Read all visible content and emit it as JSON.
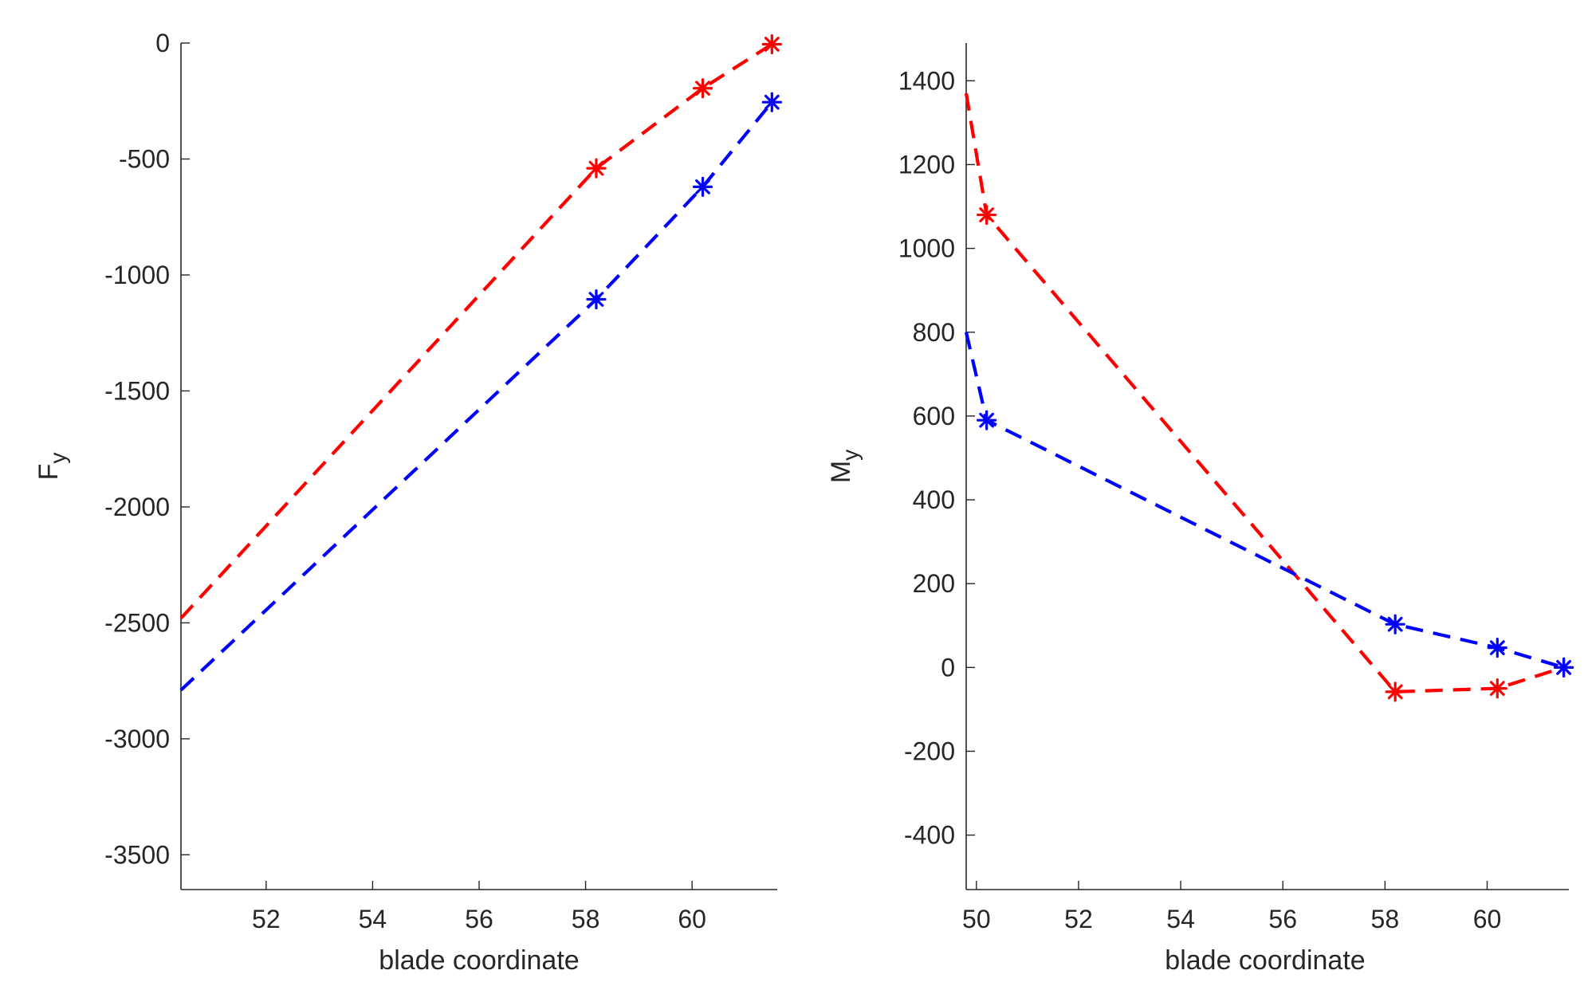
{
  "colors": {
    "series_red": "#ff0000",
    "series_blue": "#0000ff",
    "axis": "#262626"
  },
  "chart_data": [
    {
      "type": "line",
      "xlabel": "blade coordinate",
      "ylabel": {
        "main": "F",
        "sub": "y"
      },
      "xlim": [
        50.4,
        61.6
      ],
      "ylim": [
        -3650,
        0
      ],
      "xticks": [
        "52",
        "54",
        "56",
        "58",
        "60"
      ],
      "yticks": [
        "0",
        "-500",
        "-1000",
        "-1500",
        "-2000",
        "-2500",
        "-3000",
        "-3500"
      ],
      "grid": false,
      "series": [
        {
          "color": "#ff0000",
          "style": "dashed",
          "line": {
            "x": [
              50.4,
              58.2,
              60.2,
              61.5
            ],
            "y": [
              -2480,
              -540,
              -195,
              -5
            ]
          },
          "markers": {
            "x": [
              58.2,
              60.2,
              61.5
            ],
            "y": [
              -540,
              -195,
              -5
            ]
          }
        },
        {
          "color": "#0000ff",
          "style": "dashed",
          "line": {
            "x": [
              50.4,
              58.2,
              60.2,
              61.5
            ],
            "y": [
              -2790,
              -1105,
              -620,
              -255
            ]
          },
          "markers": {
            "x": [
              58.2,
              60.2,
              61.5
            ],
            "y": [
              -1105,
              -620,
              -255
            ]
          }
        }
      ]
    },
    {
      "type": "line",
      "xlabel": "blade coordinate",
      "ylabel": {
        "main": "M",
        "sub": "y"
      },
      "xlim": [
        49.8,
        61.6
      ],
      "ylim": [
        -530,
        1490
      ],
      "xticks": [
        "50",
        "52",
        "54",
        "56",
        "58",
        "60"
      ],
      "yticks": [
        "1400",
        "1200",
        "1000",
        "800",
        "600",
        "400",
        "200",
        "0",
        "-200",
        "-400"
      ],
      "grid": false,
      "series": [
        {
          "color": "#ff0000",
          "style": "dashed",
          "line": {
            "x": [
              49.8,
              50.2,
              58.2,
              60.2,
              61.5
            ],
            "y": [
              1370,
              1080,
              -58,
              -50,
              0
            ]
          },
          "markers": {
            "x": [
              50.2,
              58.2,
              60.2,
              61.5
            ],
            "y": [
              1080,
              -58,
              -50,
              0
            ]
          }
        },
        {
          "color": "#0000ff",
          "style": "dashed",
          "line": {
            "x": [
              49.8,
              50.2,
              58.2,
              60.2,
              61.5
            ],
            "y": [
              800,
              590,
              103,
              47,
              0
            ]
          },
          "markers": {
            "x": [
              50.2,
              58.2,
              60.2,
              61.5
            ],
            "y": [
              590,
              103,
              47,
              0
            ]
          }
        }
      ]
    }
  ]
}
